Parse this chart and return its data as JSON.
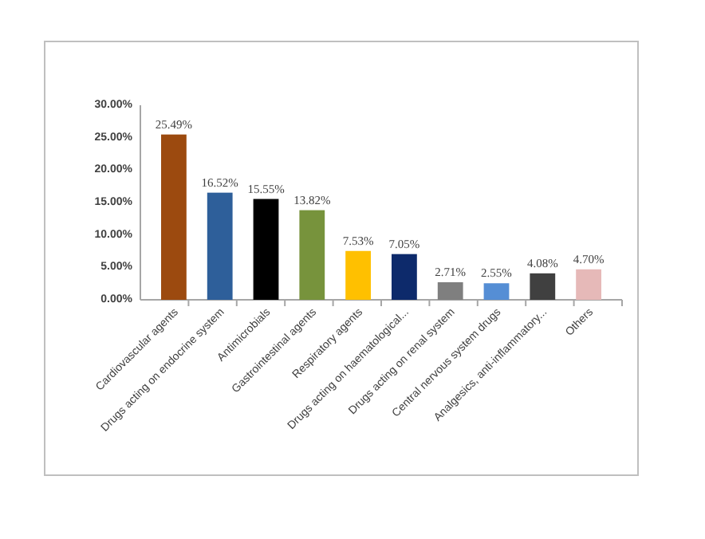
{
  "chart_data": {
    "type": "bar",
    "categories": [
      "Cardiovascular agents",
      "Drugs acting on endocrine system",
      "Antimicrobials",
      "Gastrointestinal agents",
      "Respiratory agents",
      "Drugs acting on haematological...",
      "Drugs acting on renal system",
      "Central nervous system drugs",
      "Analgesics, anti-inflammatory...",
      "Others"
    ],
    "values": [
      25.49,
      16.52,
      15.55,
      13.82,
      7.53,
      7.05,
      2.71,
      2.55,
      4.08,
      4.7
    ],
    "colors": [
      "#9c4a0f",
      "#2e5f9a",
      "#000000",
      "#77933c",
      "#ffc000",
      "#0d2a6b",
      "#7f7f7f",
      "#558ed5",
      "#404040",
      "#e6b9b8"
    ],
    "value_labels": [
      "25.49%",
      "16.52%",
      "15.55%",
      "13.82%",
      "7.53%",
      "7.05%",
      "2.71%",
      "2.55%",
      "4.08%",
      "4.70%"
    ],
    "ylim": [
      0,
      30
    ],
    "yticks": [
      {
        "value": 0,
        "label": "0.00%"
      },
      {
        "value": 5,
        "label": "5.00%"
      },
      {
        "value": 10,
        "label": "10.00%"
      },
      {
        "value": 15,
        "label": "15.00%"
      },
      {
        "value": 20,
        "label": "20.00%"
      },
      {
        "value": 25,
        "label": "25.00%"
      },
      {
        "value": 30,
        "label": "30.00%"
      }
    ]
  }
}
